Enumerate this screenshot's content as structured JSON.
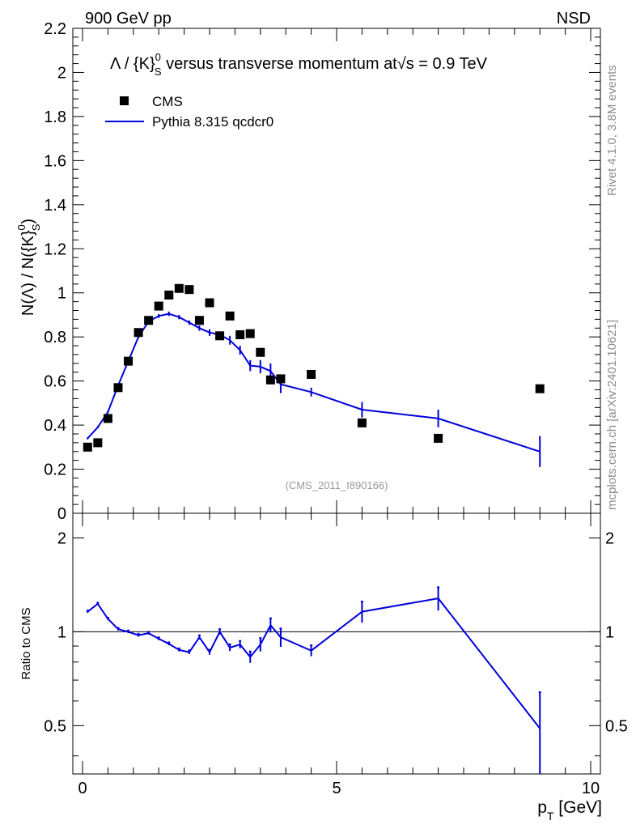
{
  "header": {
    "left": "900 GeV pp",
    "right": "NSD"
  },
  "side_text": {
    "top": "Rivet 4.1.0,  3.8M events",
    "bottom": "mcplots.cern.ch [arXiv:2401.10621]"
  },
  "colors": {
    "mc": "#0000dd",
    "data": "#000000",
    "watermark": "#999999",
    "side": "#8c8c8c"
  },
  "chart_data": [
    {
      "type": "scatter",
      "title": "Λ / {K}⁰S versus transverse momentum at √s = 0.9 TeV",
      "title_parts": {
        "pre": "Λ / {K}",
        "sup": "0",
        "sub": "S",
        "mid": " versus transverse momentum at",
        "root": "s",
        "post": " = 0.9 TeV"
      },
      "ylabel": "N(Λ)  /  N({K}⁰S)",
      "ylabel_parts": {
        "pre": "N(Λ)  /  N({K}",
        "sup": "0",
        "sub": "S",
        "post": ")"
      },
      "xlim": [
        0,
        10
      ],
      "ylim": [
        0,
        2.2
      ],
      "yticks": [
        0,
        0.2,
        0.4,
        0.6,
        0.8,
        1,
        1.2,
        1.4,
        1.6,
        1.8,
        2,
        2.2
      ],
      "ytick_labels": [
        "0",
        "0.2",
        "0.4",
        "0.6",
        "0.8",
        "1",
        "1.2",
        "1.4",
        "1.6",
        "1.8",
        "2",
        "2.2"
      ],
      "watermark": "(CMS_2011_I890166)",
      "legend": {
        "position": "top-left",
        "entries": [
          "CMS",
          "Pythia 8.315 qcdcr0"
        ]
      },
      "series": [
        {
          "name": "CMS",
          "style": "markers",
          "x": [
            0.1,
            0.3,
            0.5,
            0.7,
            0.9,
            1.1,
            1.3,
            1.5,
            1.7,
            1.9,
            2.1,
            2.3,
            2.5,
            2.7,
            2.9,
            3.1,
            3.3,
            3.5,
            3.7,
            3.9,
            4.5,
            5.5,
            7.0,
            9.0
          ],
          "y": [
            0.3,
            0.32,
            0.43,
            0.57,
            0.69,
            0.82,
            0.875,
            0.94,
            0.99,
            1.02,
            1.015,
            0.875,
            0.955,
            0.805,
            0.895,
            0.81,
            0.815,
            0.73,
            0.605,
            0.61,
            0.63,
            0.41,
            0.34,
            0.565
          ]
        },
        {
          "name": "Pythia 8.315 qcdcr0",
          "style": "line",
          "x": [
            0.1,
            0.3,
            0.5,
            0.7,
            0.9,
            1.1,
            1.3,
            1.5,
            1.7,
            1.9,
            2.1,
            2.3,
            2.5,
            2.7,
            2.9,
            3.1,
            3.3,
            3.5,
            3.7,
            3.9,
            4.5,
            5.5,
            7.0,
            9.0
          ],
          "y": [
            0.34,
            0.39,
            0.46,
            0.58,
            0.69,
            0.8,
            0.87,
            0.895,
            0.905,
            0.89,
            0.865,
            0.84,
            0.82,
            0.81,
            0.785,
            0.74,
            0.67,
            0.665,
            0.645,
            0.585,
            0.55,
            0.47,
            0.43,
            0.28
          ],
          "yerr": [
            0.005,
            0.005,
            0.005,
            0.005,
            0.005,
            0.007,
            0.008,
            0.009,
            0.01,
            0.01,
            0.01,
            0.012,
            0.015,
            0.015,
            0.02,
            0.02,
            0.025,
            0.03,
            0.035,
            0.04,
            0.02,
            0.035,
            0.04,
            0.07
          ]
        }
      ]
    },
    {
      "type": "line",
      "title": "",
      "xlabel": "p_T [GeV]",
      "xlabel_parts": {
        "p": "p",
        "sub": "T",
        "post": " [GeV]"
      },
      "ylabel": "Ratio to CMS",
      "xlim": [
        0,
        10
      ],
      "ylim": [
        0.35,
        2.4
      ],
      "yscale": "log",
      "xticks": [
        0,
        5,
        10
      ],
      "xtick_labels": [
        "0",
        "5",
        "10"
      ],
      "yticks": [
        0.5,
        1,
        2
      ],
      "ytick_labels": [
        "0.5",
        "1",
        "2"
      ],
      "reference_line": 1,
      "series": [
        {
          "name": "Pythia 8.315 qcdcr0 / CMS",
          "x": [
            0.1,
            0.3,
            0.5,
            0.7,
            0.9,
            1.1,
            1.3,
            1.5,
            1.7,
            1.9,
            2.1,
            2.3,
            2.5,
            2.7,
            2.9,
            3.1,
            3.3,
            3.5,
            3.7,
            3.9,
            4.5,
            5.5,
            7.0,
            9.0
          ],
          "y": [
            1.16,
            1.23,
            1.1,
            1.02,
            1.0,
            0.975,
            0.99,
            0.95,
            0.915,
            0.875,
            0.86,
            0.96,
            0.86,
            1.0,
            0.89,
            0.91,
            0.83,
            0.91,
            1.05,
            0.96,
            0.87,
            1.16,
            1.28,
            0.49
          ],
          "yerr": [
            0.01,
            0.01,
            0.01,
            0.01,
            0.01,
            0.01,
            0.01,
            0.01,
            0.01,
            0.01,
            0.012,
            0.015,
            0.016,
            0.02,
            0.022,
            0.025,
            0.035,
            0.045,
            0.055,
            0.065,
            0.035,
            0.09,
            0.11,
            0.15
          ]
        }
      ]
    }
  ]
}
